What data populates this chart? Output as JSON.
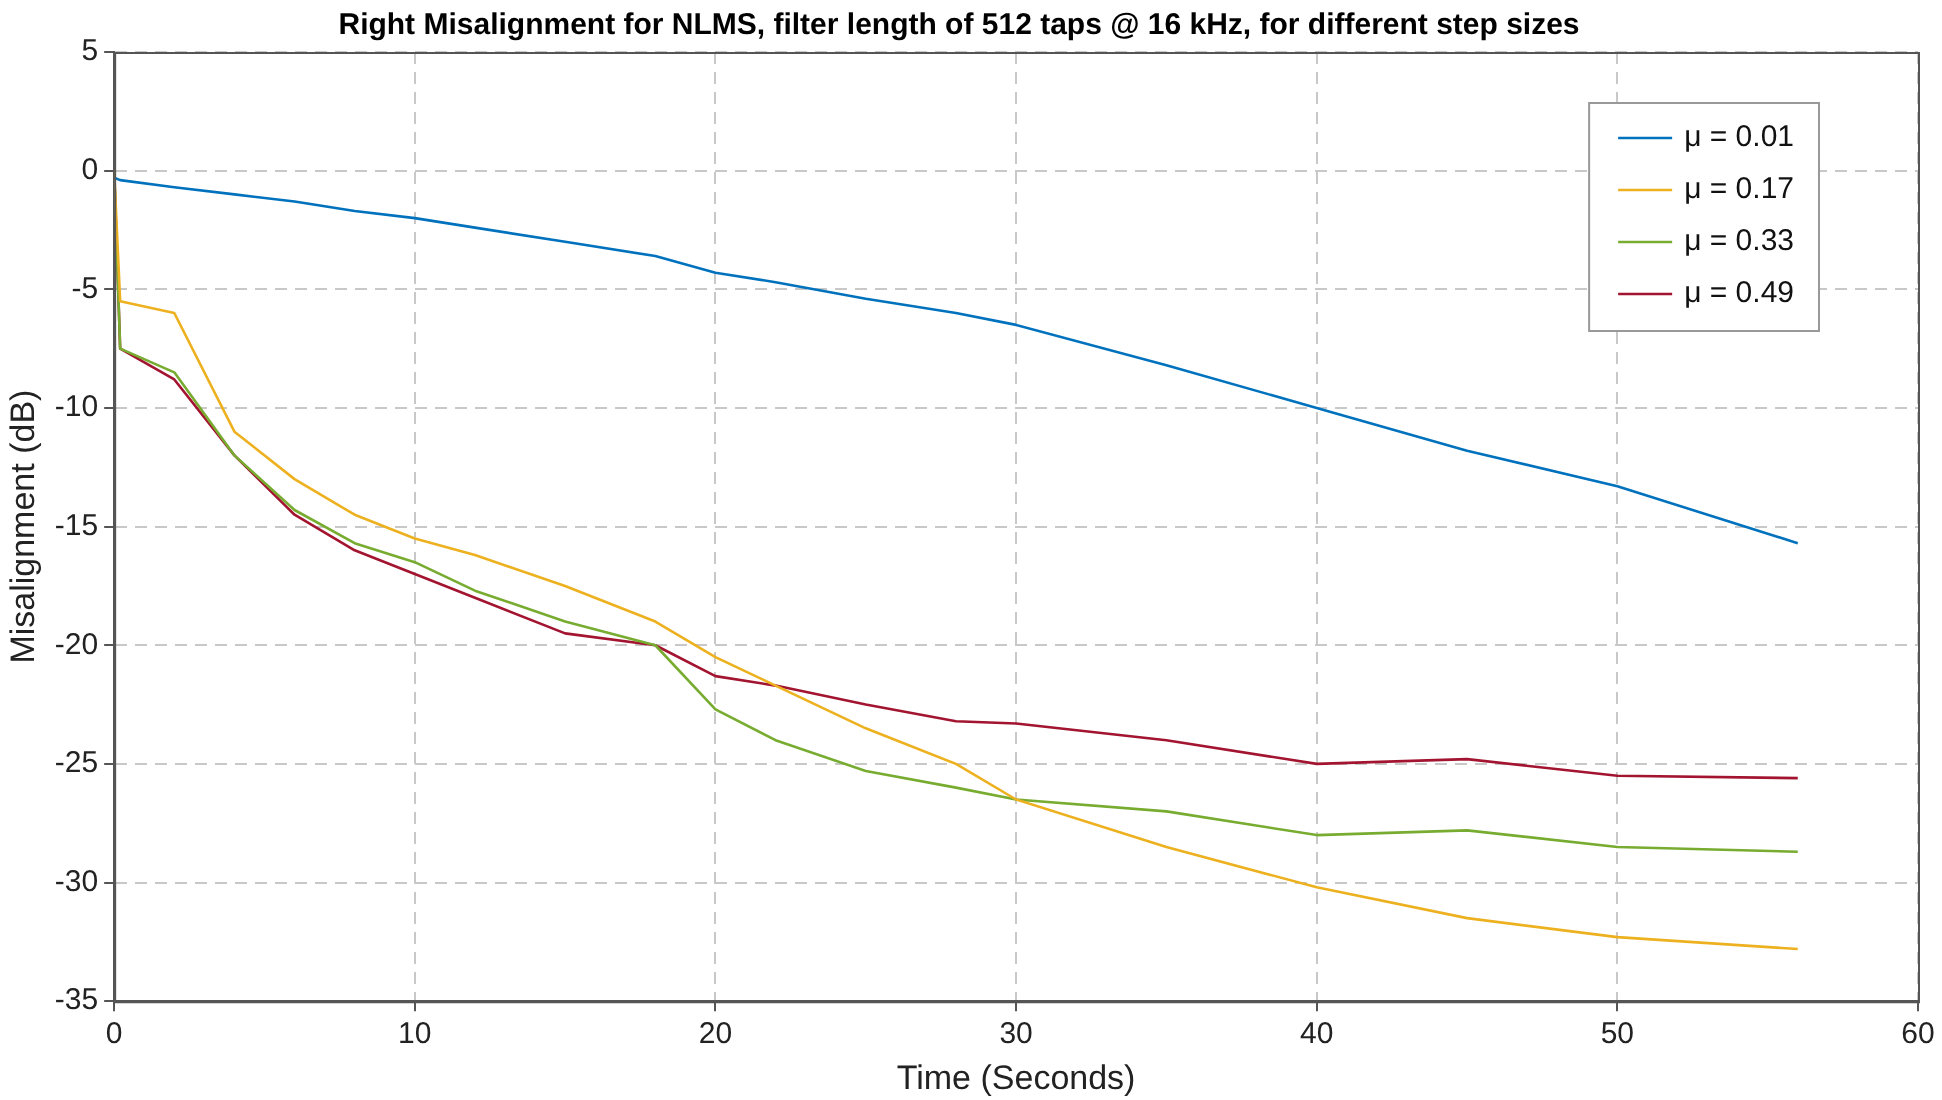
{
  "chart_data": {
    "type": "line",
    "title": "Right Misalignment for NLMS, filter length of 512 taps @ 16 kHz, for different step sizes",
    "xlabel": "Time (Seconds)",
    "ylabel": "Misalignment (dB)",
    "x": [
      0,
      0.2,
      2,
      4,
      6,
      8,
      10,
      12,
      15,
      18,
      20,
      22,
      25,
      28,
      30,
      35,
      40,
      45,
      50,
      56
    ],
    "series": [
      {
        "name": "μ = 0.01",
        "color": "#0072bd",
        "values": [
          -0.3,
          -0.4,
          -0.7,
          -1.0,
          -1.3,
          -1.7,
          -2.0,
          -2.4,
          -3.0,
          -3.6,
          -4.3,
          -4.7,
          -5.4,
          -6.0,
          -6.5,
          -8.2,
          -10,
          -11.8,
          -13.3,
          -15.7
        ]
      },
      {
        "name": "μ = 0.17",
        "color": "#edb120",
        "values": [
          0,
          -5.5,
          -6,
          -11,
          -13,
          -14.5,
          -15.5,
          -16.2,
          -17.5,
          -19,
          -20.5,
          -21.7,
          -23.5,
          -25,
          -26.5,
          -28.5,
          -30.2,
          -31.5,
          -32.3,
          -32.8
        ]
      },
      {
        "name": "μ = 0.33",
        "color": "#77ac30",
        "values": [
          0,
          -7.5,
          -8.5,
          -12,
          -14.3,
          -15.7,
          -16.5,
          -17.7,
          -19,
          -20,
          -22.7,
          -24,
          -25.3,
          -26,
          -26.5,
          -27,
          -28,
          -27.8,
          -28.5,
          -28.7
        ]
      },
      {
        "name": "μ = 0.49",
        "color": "#a2142f",
        "values": [
          0,
          -7.5,
          -8.8,
          -12,
          -14.5,
          -16,
          -17,
          -18,
          -19.5,
          -20,
          -21.3,
          -21.7,
          -22.5,
          -23.2,
          -23.3,
          -24,
          -25,
          -24.8,
          -25.5,
          -25.6
        ]
      }
    ],
    "xlim": [
      0,
      60
    ],
    "xticks": [
      0,
      10,
      20,
      30,
      40,
      50,
      60
    ],
    "ylim": [
      -35,
      5
    ],
    "yticks": [
      -35,
      -30,
      -25,
      -20,
      -15,
      -10,
      -5,
      0,
      5
    ],
    "grid": true,
    "legend": "top right",
    "marker": "none",
    "line_style": "solid"
  }
}
